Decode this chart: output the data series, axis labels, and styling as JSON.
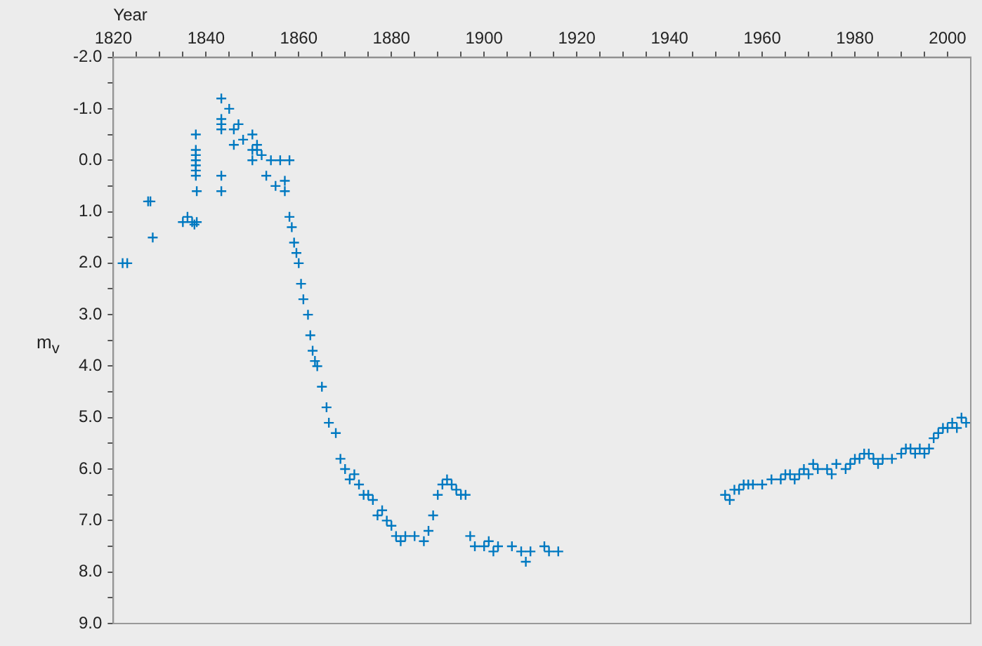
{
  "chart_data": {
    "type": "scatter",
    "xlabel": "Year",
    "ylabel": "m$_{v}$",
    "marker": "cross",
    "grid": false,
    "legend": false,
    "xlim": [
      1820,
      2005
    ],
    "ylim": [
      9,
      -2
    ],
    "xticks": [
      1820,
      {
        "value": 1825,
        "label": null
      },
      1840,
      {
        "value": 1845,
        "label": null
      },
      {
        "value": 1830,
        "label": null
      },
      {
        "value": 1835,
        "label": null
      },
      1860,
      {
        "value": 1850,
        "label": null
      },
      {
        "value": 1855,
        "label": null
      },
      {
        "value": 1865,
        "label": null
      },
      {
        "value": 1870,
        "label": null
      },
      {
        "value": 1875,
        "label": null
      },
      1880,
      {
        "value": 1885,
        "label": null
      },
      {
        "value": 1890,
        "label": null
      },
      {
        "value": 1895,
        "label": null
      },
      1900,
      {
        "value": 1905,
        "label": null
      },
      {
        "value": 1910,
        "label": null
      },
      {
        "value": 1915,
        "label": null
      },
      1920,
      {
        "value": 1925,
        "label": null
      },
      {
        "value": 1930,
        "label": null
      },
      {
        "value": 1935,
        "label": null
      },
      1940,
      {
        "value": 1945,
        "label": null
      },
      {
        "value": 1950,
        "label": null
      },
      {
        "value": 1955,
        "label": null
      },
      1960,
      {
        "value": 1965,
        "label": null
      },
      {
        "value": 1970,
        "label": null
      },
      {
        "value": 1975,
        "label": null
      },
      1980,
      {
        "value": 1985,
        "label": null
      },
      {
        "value": 1990,
        "label": null
      },
      {
        "value": 1995,
        "label": null
      },
      2000
    ],
    "yticks": [
      {
        "value": -2,
        "label": "-2.0"
      },
      {
        "value": -1.5,
        "label": null
      },
      {
        "value": -1,
        "label": "-1.0"
      },
      {
        "value": -0.5,
        "label": null
      },
      {
        "value": 0,
        "label": "0.0"
      },
      {
        "value": 0.5,
        "label": null
      },
      {
        "value": 1,
        "label": "1.0"
      },
      {
        "value": 1.5,
        "label": null
      },
      {
        "value": 2,
        "label": "2.0"
      },
      {
        "value": 2.5,
        "label": null
      },
      {
        "value": 3,
        "label": "3.0"
      },
      {
        "value": 3.5,
        "label": null
      },
      {
        "value": 4,
        "label": "4.0"
      },
      {
        "value": 4.5,
        "label": null
      },
      {
        "value": 5,
        "label": "5.0"
      },
      {
        "value": 5.5,
        "label": null
      },
      {
        "value": 6,
        "label": "6.0"
      },
      {
        "value": 6.5,
        "label": null
      },
      {
        "value": 7,
        "label": "7.0"
      },
      {
        "value": 7.5,
        "label": null
      },
      {
        "value": 8,
        "label": "8.0"
      },
      {
        "value": 8.5,
        "label": null
      },
      {
        "value": 9,
        "label": "9.0"
      }
    ],
    "series": [
      {
        "color": "#0079c1",
        "x": [
          1822,
          1823,
          1827.5,
          1828,
          1828.5,
          1835,
          1836,
          1837,
          1837.5,
          1838,
          1837.8,
          1837.8,
          1837.8,
          1837.8,
          1837.8,
          1837.8,
          1837.8,
          1838,
          1843.3,
          1843.3,
          1843.3,
          1843.3,
          1843.3,
          1843.3,
          1845,
          1846,
          1846,
          1847,
          1848,
          1850,
          1850,
          1850,
          1851,
          1851,
          1852,
          1853,
          1854,
          1855,
          1856,
          1857,
          1857,
          1858,
          1858,
          1858.5,
          1859,
          1859.5,
          1860,
          1860.5,
          1861,
          1862,
          1862.5,
          1863,
          1863.5,
          1864,
          1865,
          1866,
          1866.5,
          1868,
          1869,
          1870,
          1871,
          1872,
          1873,
          1874,
          1875,
          1876,
          1877,
          1878,
          1879,
          1880,
          1881,
          1882,
          1883,
          1885,
          1887,
          1888,
          1889,
          1890,
          1891,
          1892,
          1893,
          1894,
          1895,
          1896,
          1897,
          1898,
          1900,
          1901,
          1902,
          1903,
          1906,
          1908,
          1909,
          1910,
          1913,
          1914,
          1916,
          1952,
          1953,
          1954,
          1955,
          1956,
          1957,
          1958,
          1960,
          1962,
          1964,
          1965,
          1966,
          1967,
          1968,
          1969,
          1970,
          1971,
          1972,
          1974,
          1975,
          1976,
          1978,
          1979,
          1980,
          1981,
          1982,
          1983,
          1984,
          1985,
          1986,
          1988,
          1990,
          1991,
          1992,
          1993,
          1994,
          1995,
          1996,
          1997,
          1998,
          1999,
          2000,
          2001,
          2002,
          2003,
          2004
        ],
        "values": [
          2.0,
          2.0,
          0.8,
          0.8,
          1.5,
          1.2,
          1.1,
          1.2,
          1.25,
          1.2,
          -0.5,
          -0.2,
          -0.1,
          0.0,
          0.1,
          0.2,
          0.3,
          0.6,
          -1.2,
          -0.8,
          -0.7,
          -0.6,
          0.3,
          0.6,
          -1.0,
          -0.6,
          -0.3,
          -0.7,
          -0.4,
          -0.5,
          -0.2,
          0.0,
          -0.3,
          -0.2,
          -0.1,
          0.3,
          0.0,
          0.5,
          0.0,
          0.6,
          0.4,
          0.0,
          1.1,
          1.3,
          1.6,
          1.8,
          2.0,
          2.4,
          2.7,
          3.0,
          3.4,
          3.7,
          3.9,
          4.0,
          4.4,
          4.8,
          5.1,
          5.3,
          5.8,
          6.0,
          6.2,
          6.1,
          6.3,
          6.5,
          6.5,
          6.6,
          6.9,
          6.8,
          7.0,
          7.1,
          7.3,
          7.4,
          7.3,
          7.3,
          7.4,
          7.2,
          6.9,
          6.5,
          6.3,
          6.2,
          6.3,
          6.4,
          6.5,
          6.5,
          7.3,
          7.5,
          7.5,
          7.4,
          7.6,
          7.5,
          7.5,
          7.6,
          7.8,
          7.6,
          7.5,
          7.6,
          7.6,
          6.5,
          6.6,
          6.4,
          6.4,
          6.3,
          6.3,
          6.3,
          6.3,
          6.2,
          6.2,
          6.1,
          6.1,
          6.2,
          6.1,
          6.0,
          6.1,
          5.9,
          6.0,
          6.0,
          6.1,
          5.9,
          6.0,
          5.9,
          5.8,
          5.8,
          5.7,
          5.7,
          5.8,
          5.9,
          5.8,
          5.8,
          5.7,
          5.6,
          5.6,
          5.7,
          5.6,
          5.7,
          5.6,
          5.4,
          5.3,
          5.2,
          5.2,
          5.1,
          5.2,
          5.0,
          5.1
        ]
      }
    ]
  }
}
